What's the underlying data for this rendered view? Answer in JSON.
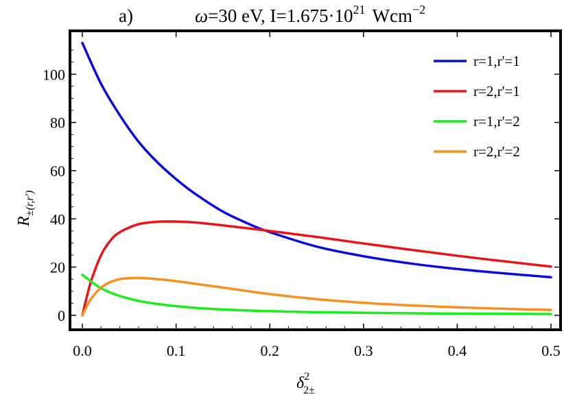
{
  "chart_data": {
    "type": "line",
    "title_panel": "a)",
    "title_omega": "ω",
    "title_omega_rest": "=30 eV, I=1.675·10",
    "title_exp": "21",
    "title_unit": "Wcm",
    "title_unit_exp": "−2",
    "xlabel_base": "δ",
    "xlabel_sup": "2",
    "xlabel_sub": "2±",
    "ylabel_base": "R",
    "ylabel_sub": "±(r,r′)",
    "xlim": [
      0,
      0.5
    ],
    "ylim": [
      -6,
      118
    ],
    "x_ticks": [
      {
        "value": 0.0,
        "label": "0.0"
      },
      {
        "value": 0.1,
        "label": "0.1"
      },
      {
        "value": 0.2,
        "label": "0.2"
      },
      {
        "value": 0.3,
        "label": "0.3"
      },
      {
        "value": 0.4,
        "label": "0.4"
      },
      {
        "value": 0.5,
        "label": "0.5"
      }
    ],
    "y_ticks": [
      {
        "value": 0,
        "label": "0"
      },
      {
        "value": 20,
        "label": "20"
      },
      {
        "value": 40,
        "label": "40"
      },
      {
        "value": 60,
        "label": "60"
      },
      {
        "value": 80,
        "label": "80"
      },
      {
        "value": 100,
        "label": "100"
      }
    ],
    "legend_position": "top-right",
    "series": [
      {
        "name": "r=1,r'=1",
        "color": "#0a0adc",
        "x": [
          0.0,
          0.02,
          0.04,
          0.06,
          0.08,
          0.1,
          0.12,
          0.15,
          0.18,
          0.2,
          0.25,
          0.3,
          0.35,
          0.4,
          0.45,
          0.5
        ],
        "y": [
          113,
          96,
          83,
          72,
          63.5,
          56.5,
          50.5,
          43,
          37.5,
          34.5,
          28.5,
          24.5,
          21.5,
          19.2,
          17.4,
          15.8
        ]
      },
      {
        "name": "r=2,r'=1",
        "color": "#e8141a",
        "x": [
          0.0,
          0.005,
          0.01,
          0.02,
          0.03,
          0.04,
          0.06,
          0.08,
          0.1,
          0.12,
          0.15,
          0.2,
          0.25,
          0.3,
          0.35,
          0.4,
          0.45,
          0.5
        ],
        "y": [
          0,
          8,
          15,
          25,
          31,
          34.5,
          37.8,
          38.8,
          38.9,
          38.5,
          37.3,
          35,
          32.5,
          29.8,
          27.2,
          24.7,
          22.4,
          20.2
        ]
      },
      {
        "name": "r=1,r'=2",
        "color": "#1aee1a",
        "x": [
          0.0,
          0.02,
          0.04,
          0.06,
          0.08,
          0.1,
          0.12,
          0.15,
          0.2,
          0.25,
          0.3,
          0.35,
          0.4,
          0.45,
          0.5
        ],
        "y": [
          16.8,
          11.2,
          8.0,
          6.0,
          4.7,
          3.8,
          3.1,
          2.4,
          1.7,
          1.3,
          1.05,
          0.85,
          0.7,
          0.6,
          0.5
        ]
      },
      {
        "name": "r=2,r'=2",
        "color": "#f7901e",
        "x": [
          0.0,
          0.005,
          0.01,
          0.02,
          0.03,
          0.04,
          0.05,
          0.06,
          0.08,
          0.1,
          0.12,
          0.15,
          0.2,
          0.25,
          0.3,
          0.35,
          0.4,
          0.45,
          0.5
        ],
        "y": [
          0,
          4,
          7.2,
          11.5,
          13.8,
          15.0,
          15.4,
          15.5,
          15.0,
          14.2,
          13.1,
          11.5,
          8.8,
          6.7,
          5.2,
          4.1,
          3.3,
          2.7,
          2.2
        ]
      }
    ]
  }
}
